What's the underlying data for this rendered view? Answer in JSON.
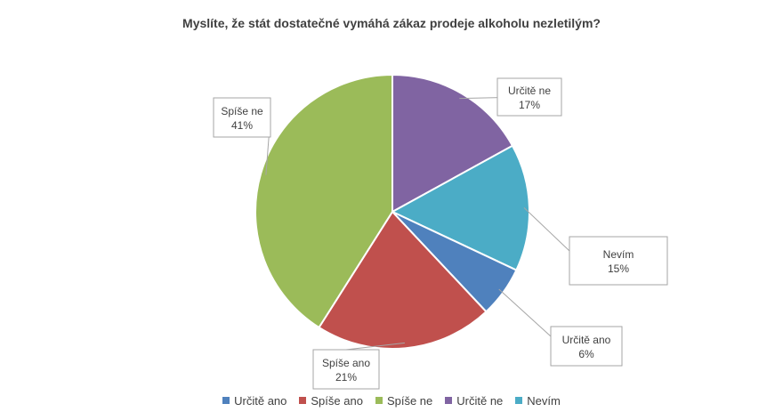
{
  "chart_data": {
    "type": "pie",
    "title": "Myslíte, že stát dostatečné vymáhá zákaz prodeje alkoholu nezletilým?",
    "slices": [
      {
        "label": "Určitě ano",
        "value": 6,
        "value_label": "6%",
        "color": "#4f81bd"
      },
      {
        "label": "Spíše ano",
        "value": 21,
        "value_label": "21%",
        "color": "#c0504d"
      },
      {
        "label": "Spíše ne",
        "value": 41,
        "value_label": "41%",
        "color": "#9bbb59"
      },
      {
        "label": "Určitě ne",
        "value": 17,
        "value_label": "17%",
        "color": "#8064a2"
      },
      {
        "label": "Nevím",
        "value": 15,
        "value_label": "15%",
        "color": "#4bacc6"
      }
    ],
    "legend_position": "bottom"
  }
}
